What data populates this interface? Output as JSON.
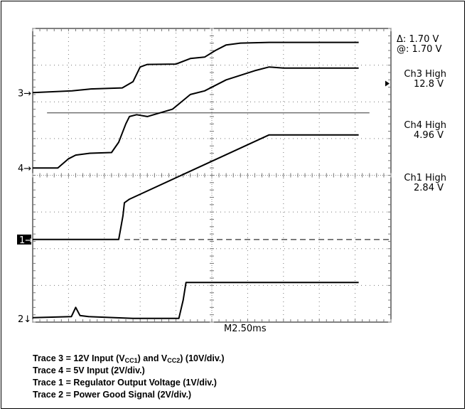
{
  "chart_data": {
    "type": "line",
    "title": "",
    "xlabel": "",
    "ylabel": "",
    "x_unit": "ms",
    "timebase_label": "M2.50ms",
    "xlim": [
      -12.5,
      12.5
    ],
    "ylim_divisions": [
      -4,
      4
    ],
    "grid": true,
    "cursor": {
      "delta_label": "Δ: 1.70 V",
      "at_label": "@: 1.70 V",
      "level_div": 1.7
    },
    "markers": [
      {
        "id": "3",
        "label": "3",
        "arrow": "→",
        "ground_div": 2.25
      },
      {
        "id": "4",
        "label": "4",
        "arrow": "→",
        "ground_div": 0.2
      },
      {
        "id": "1",
        "label": "1",
        "arrow": "→",
        "ground_div": -1.75,
        "inverted": true
      },
      {
        "id": "2",
        "label": "2",
        "arrow": "↓",
        "ground_div": -3.9
      }
    ],
    "channel_labels": [
      {
        "name": "Ch3 High",
        "value": "12.8 V",
        "marker_div": 2.5
      },
      {
        "name": "Ch4 High",
        "value": "4.96 V"
      },
      {
        "name": "Ch1 High",
        "value": "2.84 V"
      }
    ],
    "series": [
      {
        "name": "Trace 3",
        "x": [
          -12.5,
          -9.75,
          -8.5,
          -6.25,
          -5.5,
          -5.0,
          -4.5,
          -2.5,
          -1.5,
          -0.5,
          0.25,
          1.0,
          2.0,
          4.0,
          7.0,
          10.25
        ],
        "y": [
          2.25,
          2.3,
          2.35,
          2.38,
          2.55,
          2.95,
          3.02,
          3.03,
          3.18,
          3.22,
          3.4,
          3.55,
          3.6,
          3.62,
          3.62,
          3.62
        ]
      },
      {
        "name": "Trace 4",
        "x": [
          -12.5,
          -10.75,
          -10.0,
          -9.5,
          -8.5,
          -7.0,
          -6.5,
          -6.0,
          -5.75,
          -5.25,
          -4.5,
          -2.75,
          -1.5,
          -0.5,
          1.0,
          3.0,
          4.0,
          5.0,
          7.0,
          10.25
        ],
        "y": [
          0.2,
          0.2,
          0.45,
          0.55,
          0.6,
          0.62,
          0.9,
          1.4,
          1.6,
          1.65,
          1.6,
          1.8,
          2.2,
          2.3,
          2.6,
          2.85,
          2.95,
          2.92,
          2.92,
          2.92
        ]
      },
      {
        "name": "Trace 1",
        "x": [
          -12.5,
          -6.5,
          -6.2,
          -6.1,
          -5.75,
          4.0,
          10.25
        ],
        "y": [
          -1.75,
          -1.75,
          -1.1,
          -0.75,
          -0.65,
          1.1,
          1.1
        ]
      },
      {
        "name": "Trace 2",
        "x": [
          -12.5,
          -9.8,
          -9.5,
          -9.2,
          -8.6,
          -5.5,
          -2.3,
          -2.0,
          -1.8,
          10.25
        ],
        "y": [
          -3.88,
          -3.85,
          -3.6,
          -3.82,
          -3.85,
          -3.9,
          -3.9,
          -3.4,
          -2.92,
          -2.92
        ]
      }
    ]
  },
  "caption": {
    "line3_pre": "Trace 3 = 12V Input (V",
    "line3_sub1": "CC1",
    "line3_mid": ") and V",
    "line3_sub2": "CC2",
    "line3_post": ") (10V/div.)",
    "line4": "Trace 4 = 5V Input (2V/div.)",
    "line1": "Trace 1 = Regulator Output Voltage (1V/div.)",
    "line2": "Trace 2 = Power Good Signal (2V/div.)"
  }
}
